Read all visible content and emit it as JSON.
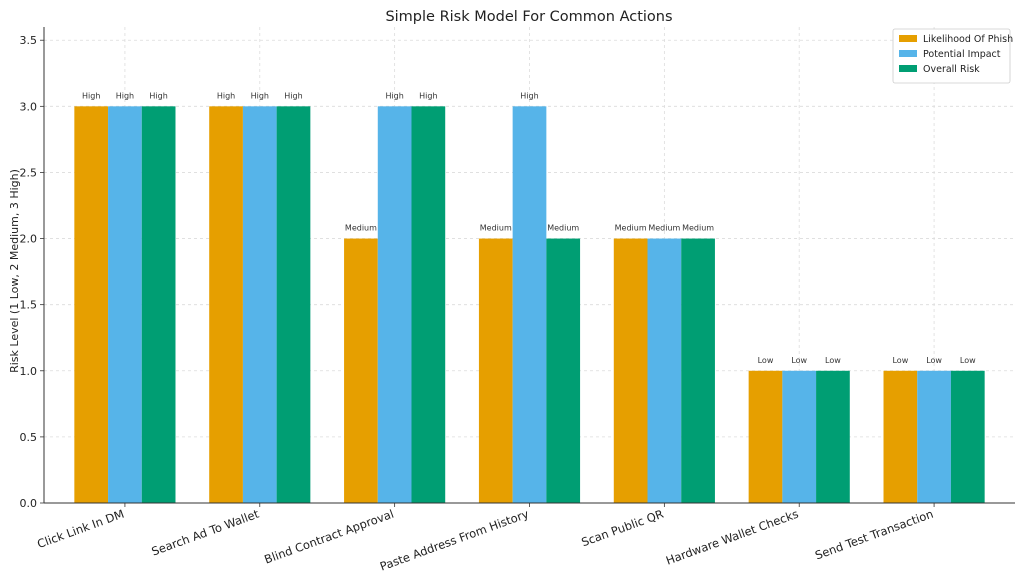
{
  "chart_data": {
    "type": "bar",
    "title": "Simple Risk Model For Common Actions",
    "xlabel": "",
    "ylabel": "Risk Level (1 Low, 2 Medium, 3 High)",
    "ylim": [
      0,
      3.6
    ],
    "yticks": [
      "0.0",
      "0.5",
      "1.0",
      "1.5",
      "2.0",
      "2.5",
      "3.0",
      "3.5"
    ],
    "ytick_values": [
      0,
      0.5,
      1.0,
      1.5,
      2.0,
      2.5,
      3.0,
      3.5
    ],
    "grid": true,
    "legend_position": "top-right",
    "categories": [
      "Click Link In DM",
      "Search Ad To Wallet",
      "Blind Contract Approval",
      "Paste Address From History",
      "Scan Public QR",
      "Hardware Wallet Checks",
      "Send Test Transaction"
    ],
    "series": [
      {
        "name": "Likelihood Of Phish",
        "color": "#E69F00",
        "values": [
          3,
          3,
          2,
          2,
          2,
          1,
          1
        ],
        "labels": [
          "High",
          "High",
          "Medium",
          "Medium",
          "Medium",
          "Low",
          "Low"
        ]
      },
      {
        "name": "Potential Impact",
        "color": "#56B4E9",
        "values": [
          3,
          3,
          3,
          3,
          2,
          1,
          1
        ],
        "labels": [
          "High",
          "High",
          "High",
          "High",
          "Medium",
          "Low",
          "Low"
        ]
      },
      {
        "name": "Overall Risk",
        "color": "#009E73",
        "values": [
          3,
          3,
          3,
          2,
          2,
          1,
          1
        ],
        "labels": [
          "High",
          "High",
          "High",
          "Medium",
          "Medium",
          "Low",
          "Low"
        ]
      }
    ]
  }
}
